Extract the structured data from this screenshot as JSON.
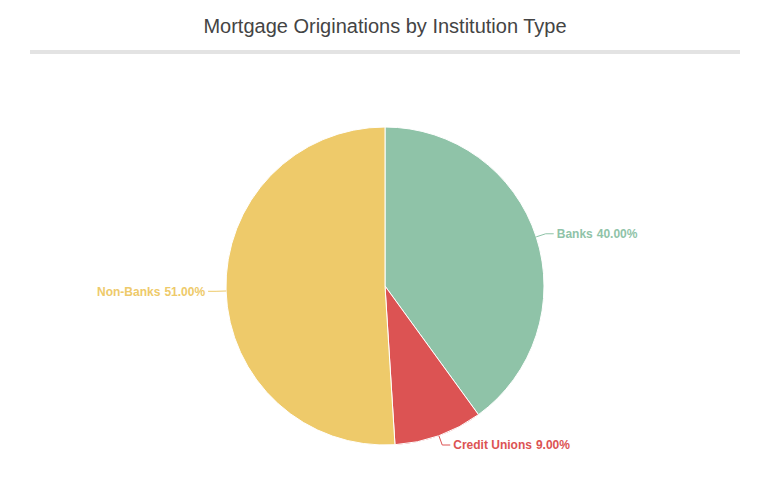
{
  "chart_data": {
    "type": "pie",
    "title": "Mortgage Originations by Institution Type",
    "categories": [
      "Banks",
      "Credit Unions",
      "Non-Banks"
    ],
    "values": [
      40,
      9,
      51
    ],
    "value_labels": [
      "40.00%",
      "9.00%",
      "51.00%"
    ],
    "colors": [
      "#8fc3a8",
      "#dc5353",
      "#eeca6a"
    ],
    "data_labels": true
  }
}
